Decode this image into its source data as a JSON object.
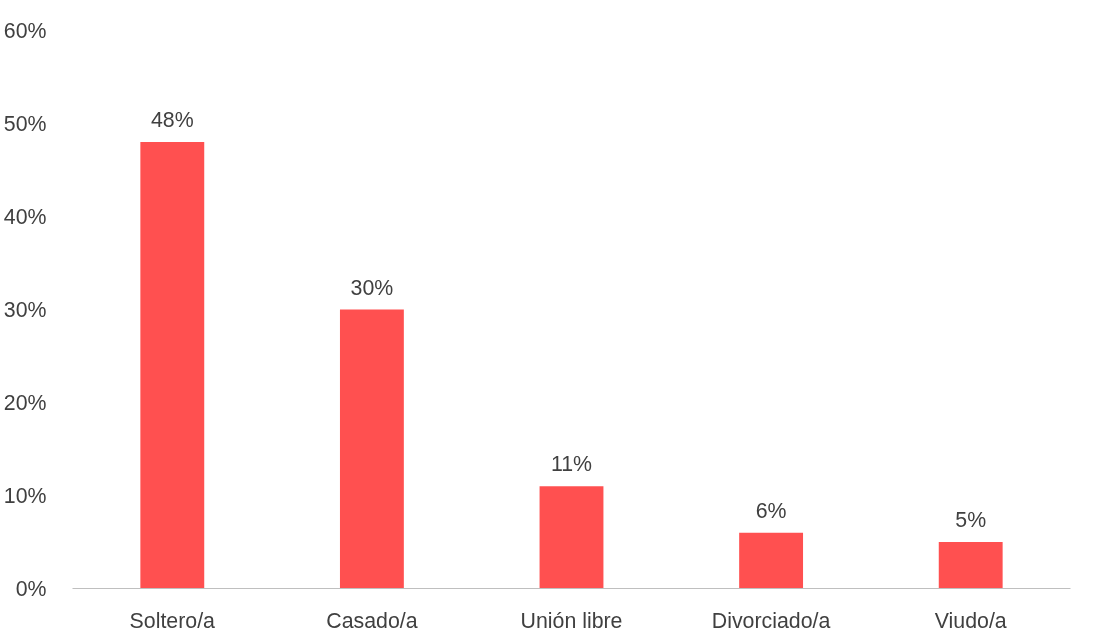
{
  "chart_data": {
    "type": "bar",
    "categories": [
      "Soltero/a",
      "Casado/a",
      "Unión libre",
      "Divorciado/a",
      "Viudo/a"
    ],
    "values": [
      48,
      30,
      11,
      6,
      5
    ],
    "value_labels": [
      "48%",
      "30%",
      "11%",
      "6%",
      "5%"
    ],
    "color": "#ff5050",
    "ylim": [
      0,
      60
    ],
    "yticks": [
      {
        "value": 0,
        "label": "0%"
      },
      {
        "value": 10,
        "label": "10%"
      },
      {
        "value": 20,
        "label": "20%"
      },
      {
        "value": 30,
        "label": "30%"
      },
      {
        "value": 40,
        "label": "40%"
      },
      {
        "value": 50,
        "label": "50%"
      },
      {
        "value": 60,
        "label": "60%"
      }
    ],
    "grid": false
  }
}
